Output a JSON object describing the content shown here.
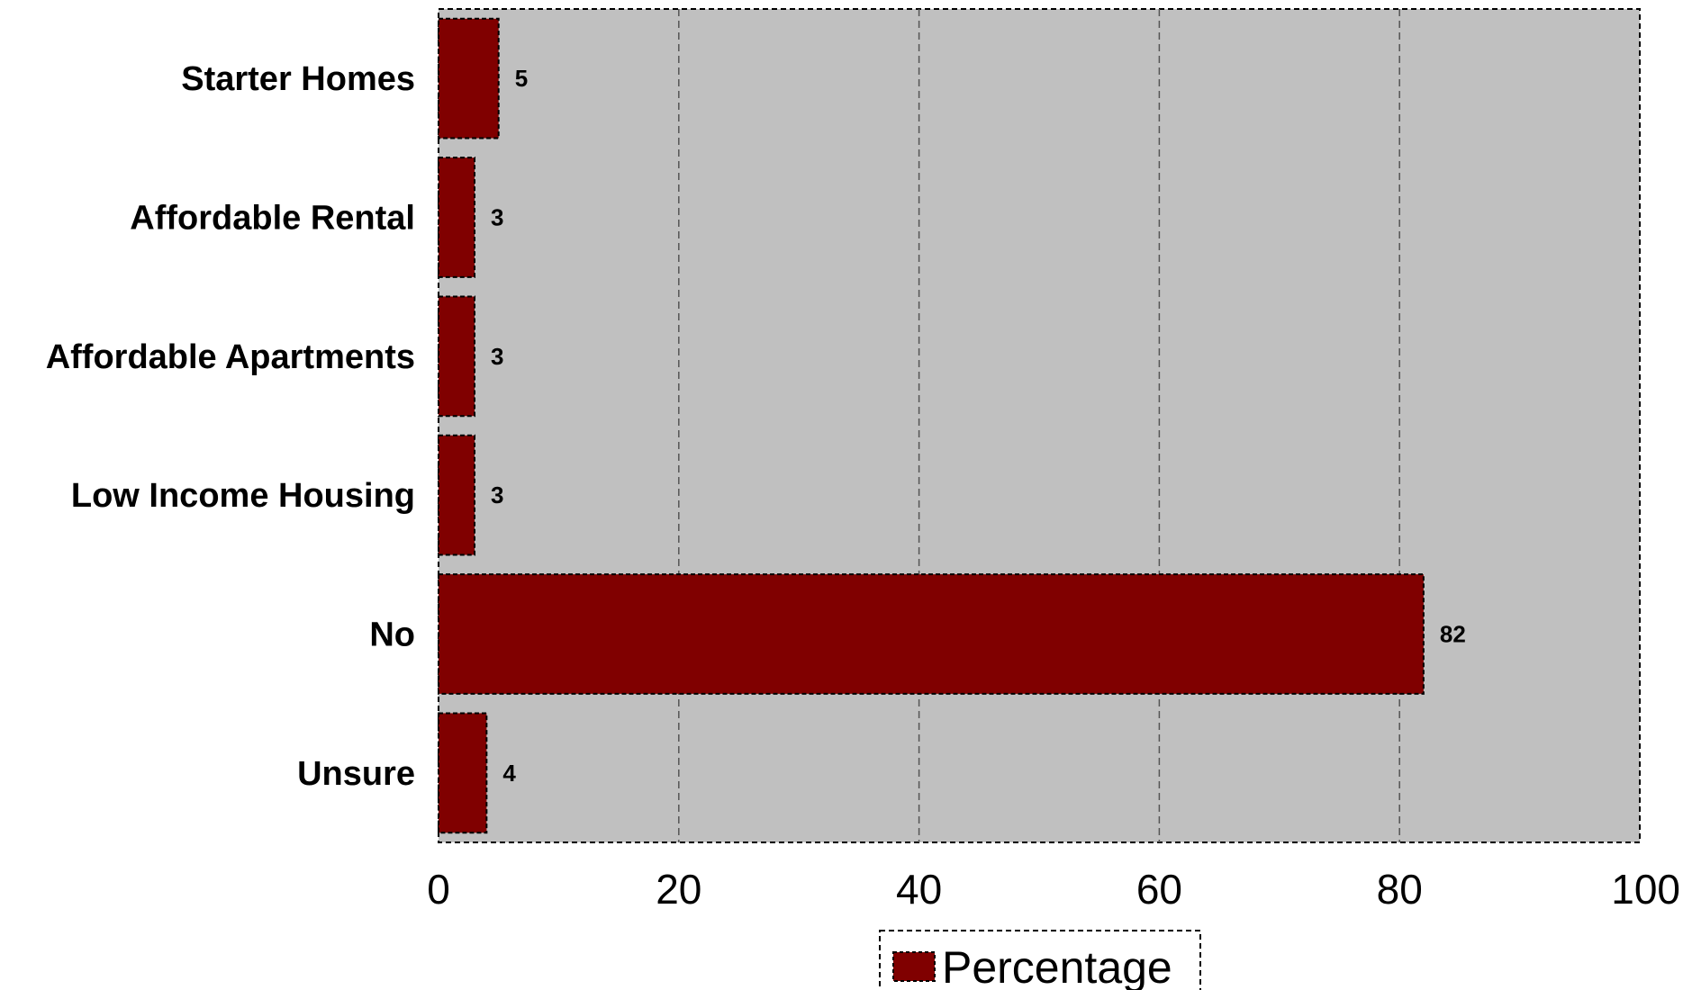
{
  "chart_data": {
    "type": "bar",
    "orientation": "horizontal",
    "categories": [
      "Starter Homes",
      "Affordable Rental",
      "Affordable Apartments",
      "Low Income Housing",
      "No",
      "Unsure"
    ],
    "series": [
      {
        "name": "Percentage",
        "values": [
          5,
          3,
          3,
          3,
          82,
          4
        ]
      }
    ],
    "data_labels": [
      "5",
      "3",
      "3",
      "3",
      "82",
      "4"
    ],
    "xlim": [
      0,
      100
    ],
    "xticks": [
      0,
      20,
      40,
      60,
      80,
      100
    ],
    "xtick_labels": [
      "0",
      "20",
      "40",
      "60",
      "80",
      "100"
    ],
    "grid": "vertical dashed",
    "legend": {
      "position": "bottom-center",
      "label": "Percentage"
    },
    "colors": {
      "bar": "#800000",
      "plot_background": "#c0c0c0",
      "grid": "#555555"
    }
  }
}
